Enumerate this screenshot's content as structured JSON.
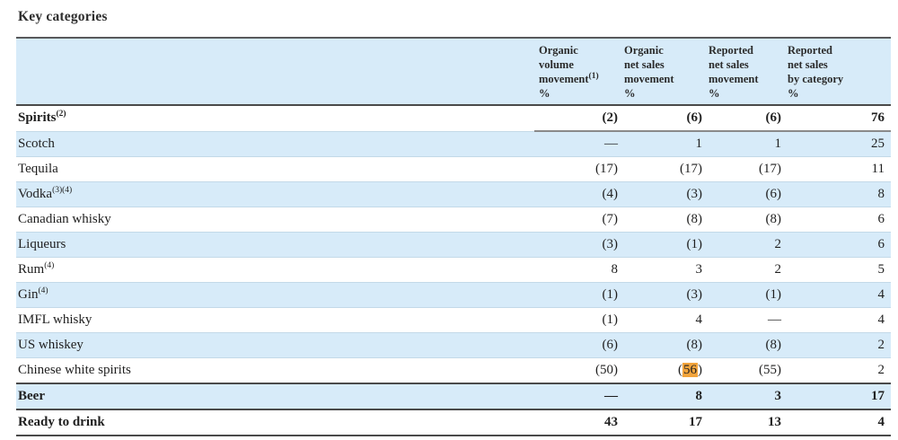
{
  "page": {
    "title": "Key categories"
  },
  "colors": {
    "stripe": "#d7ebf9",
    "highlight": "#f2a43c",
    "dark_border": "#4a4a4a",
    "light_border": "#c3d9e8",
    "top_border": "#58595b",
    "underline": "#8a8a8a"
  },
  "table": {
    "columns": [
      {
        "lines": [
          "Organic",
          "volume",
          "movement",
          "%"
        ],
        "sup": "(1)",
        "sup_after_line": 2
      },
      {
        "lines": [
          "Organic",
          "net sales",
          "movement",
          "%"
        ]
      },
      {
        "lines": [
          "Reported",
          "net sales",
          "movement",
          "%"
        ]
      },
      {
        "lines": [
          "Reported",
          "net sales",
          "by category",
          "%"
        ]
      }
    ],
    "rows": [
      {
        "label": "Spirits",
        "sup": "(2)",
        "bold": true,
        "underline_nums": true,
        "shaded": false,
        "values": [
          "(2)",
          "(6)",
          "(6)",
          "76"
        ]
      },
      {
        "label": "Scotch",
        "shaded": true,
        "values": [
          "—",
          "1",
          "1",
          "25"
        ]
      },
      {
        "label": "Tequila",
        "shaded": false,
        "values": [
          "(17)",
          "(17)",
          "(17)",
          "11"
        ]
      },
      {
        "label": "Vodka",
        "sup": "(3)(4)",
        "shaded": true,
        "values": [
          "(4)",
          "(3)",
          "(6)",
          "8"
        ]
      },
      {
        "label": "Canadian whisky",
        "shaded": false,
        "values": [
          "(7)",
          "(8)",
          "(8)",
          "6"
        ]
      },
      {
        "label": "Liqueurs",
        "shaded": true,
        "values": [
          "(3)",
          "(1)",
          "2",
          "6"
        ]
      },
      {
        "label": "Rum",
        "sup": "(4)",
        "shaded": false,
        "values": [
          "8",
          "3",
          "2",
          "5"
        ]
      },
      {
        "label": "Gin",
        "sup": "(4)",
        "shaded": true,
        "values": [
          "(1)",
          "(3)",
          "(1)",
          "4"
        ]
      },
      {
        "label": "IMFL whisky",
        "shaded": false,
        "values": [
          "(1)",
          "4",
          "—",
          "4"
        ]
      },
      {
        "label": "US whiskey",
        "shaded": true,
        "values": [
          "(6)",
          "(8)",
          "(8)",
          "2"
        ]
      },
      {
        "label": "Chinese white spirits",
        "shaded": false,
        "dark_bottom": true,
        "values": [
          "(50)",
          {
            "pre": "(",
            "mark": "56",
            "post": ")"
          },
          "(55)",
          "2"
        ]
      },
      {
        "label": "Beer",
        "bold": true,
        "shaded": true,
        "dark_bottom": true,
        "values": [
          "—",
          "8",
          "3",
          "17"
        ]
      },
      {
        "label": "Ready to drink",
        "bold": true,
        "shaded": false,
        "dark_bottom": true,
        "values": [
          "43",
          "17",
          "13",
          "4"
        ]
      }
    ]
  }
}
